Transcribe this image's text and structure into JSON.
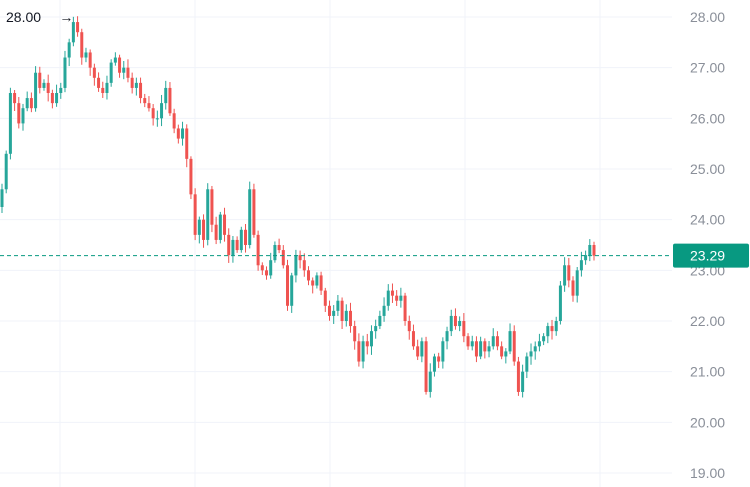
{
  "chart_data": {
    "type": "candlestick",
    "y_axis": {
      "ticks": [
        "19.00",
        "20.00",
        "21.00",
        "22.00",
        "23.00",
        "24.00",
        "25.00",
        "26.00",
        "27.00",
        "28.00"
      ],
      "range": [
        18.75,
        28.35
      ],
      "position": "right"
    },
    "grid": true,
    "high_marker": {
      "value": 28.0,
      "label": "28.00"
    },
    "last_price": {
      "value": 23.29,
      "label": "23.29"
    },
    "colors": {
      "up": "#26a69a",
      "down": "#ef5350",
      "grid": "#f0f3fa",
      "axis_text": "#8a8f99",
      "price_badge": "#089981"
    },
    "closes": [
      24.6,
      25.3,
      26.5,
      26.3,
      25.9,
      26.2,
      26.4,
      26.2,
      26.9,
      26.6,
      26.7,
      26.5,
      26.3,
      26.5,
      26.6,
      27.2,
      27.5,
      27.9,
      27.7,
      27.2,
      27.3,
      27.0,
      26.8,
      26.6,
      26.5,
      26.7,
      27.1,
      27.2,
      26.9,
      27.0,
      26.8,
      26.6,
      26.7,
      26.4,
      26.3,
      26.2,
      26.0,
      26.0,
      26.3,
      26.6,
      26.1,
      25.8,
      25.6,
      25.8,
      25.2,
      24.5,
      23.7,
      24.0,
      23.6,
      24.6,
      23.9,
      23.6,
      24.1,
      23.7,
      23.3,
      23.6,
      23.4,
      23.8,
      23.5,
      24.6,
      23.7,
      23.1,
      23.0,
      22.9,
      23.2,
      23.5,
      23.4,
      23.1,
      22.3,
      22.9,
      23.3,
      23.2,
      23.0,
      22.8,
      22.7,
      22.9,
      22.6,
      22.3,
      22.1,
      22.2,
      22.4,
      22.0,
      22.2,
      21.9,
      21.6,
      21.2,
      21.6,
      21.5,
      21.8,
      21.9,
      22.1,
      22.3,
      22.6,
      22.5,
      22.4,
      22.5,
      22.0,
      21.8,
      21.5,
      21.3,
      21.6,
      20.6,
      21.0,
      21.3,
      21.2,
      21.6,
      21.8,
      22.1,
      21.9,
      22.0,
      21.7,
      21.5,
      21.6,
      21.3,
      21.6,
      21.4,
      21.5,
      21.7,
      21.5,
      21.3,
      21.4,
      21.8,
      21.2,
      20.6,
      21.0,
      21.3,
      21.4,
      21.5,
      21.6,
      21.7,
      21.9,
      21.8,
      22.0,
      22.7,
      23.1,
      22.8,
      22.5,
      23.0,
      23.2,
      23.3,
      23.5,
      23.29
    ]
  }
}
